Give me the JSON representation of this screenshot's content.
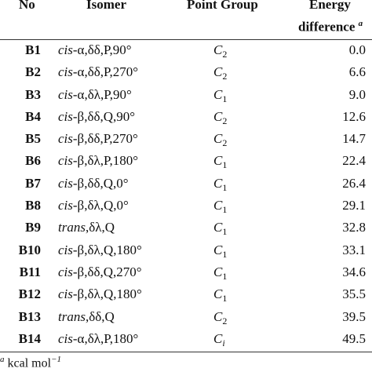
{
  "header": {
    "no": "No",
    "isomer": "Isomer",
    "point_group": "Point Group",
    "energy_line1": "Energy",
    "energy_line2": "difference",
    "energy_mark": "a"
  },
  "rows": [
    {
      "no": "B1",
      "prefix": "cis",
      "rest": "-α,δδ,P,90°",
      "pg_symbol": "C",
      "pg_sub": "2",
      "energy": "0.0"
    },
    {
      "no": "B2",
      "prefix": "cis",
      "rest": "-α,δδ,P,270°",
      "pg_symbol": "C",
      "pg_sub": "2",
      "energy": "6.6"
    },
    {
      "no": "B3",
      "prefix": "cis",
      "rest": "-α,δλ,P,90°",
      "pg_symbol": "C",
      "pg_sub": "1",
      "energy": "9.0"
    },
    {
      "no": "B4",
      "prefix": "cis",
      "rest": "-β,δδ,Q,90°",
      "pg_symbol": "C",
      "pg_sub": "2",
      "energy": "12.6"
    },
    {
      "no": "B5",
      "prefix": "cis",
      "rest": "-β,δδ,P,270°",
      "pg_symbol": "C",
      "pg_sub": "2",
      "energy": "14.7"
    },
    {
      "no": "B6",
      "prefix": "cis",
      "rest": "-β,δλ,P,180°",
      "pg_symbol": "C",
      "pg_sub": "1",
      "energy": "22.4"
    },
    {
      "no": "B7",
      "prefix": "cis",
      "rest": "-β,δδ,Q,0°",
      "pg_symbol": "C",
      "pg_sub": "1",
      "energy": "26.4"
    },
    {
      "no": "B8",
      "prefix": "cis",
      "rest": "-β,δλ,Q,0°",
      "pg_symbol": "C",
      "pg_sub": "1",
      "energy": "29.1"
    },
    {
      "no": "B9",
      "prefix": "trans",
      "rest": ",δλ,Q",
      "pg_symbol": "C",
      "pg_sub": "1",
      "energy": "32.8"
    },
    {
      "no": "B10",
      "prefix": "cis",
      "rest": "-β,δλ,Q,180°",
      "pg_symbol": "C",
      "pg_sub": "1",
      "energy": "33.1"
    },
    {
      "no": "B11",
      "prefix": "cis",
      "rest": "-β,δδ,Q,270°",
      "pg_symbol": "C",
      "pg_sub": "1",
      "energy": "34.6"
    },
    {
      "no": "B12",
      "prefix": "cis",
      "rest": "-β,δλ,Q,180°",
      "pg_symbol": "C",
      "pg_sub": "1",
      "energy": "35.5"
    },
    {
      "no": "B13",
      "prefix": "trans",
      "rest": ",δδ,Q",
      "pg_symbol": "C",
      "pg_sub": "2",
      "energy": "39.5"
    },
    {
      "no": "B14",
      "prefix": "cis",
      "rest": "-α,δλ,P,180°",
      "pg_symbol": "C",
      "pg_sub": "i",
      "energy": "49.5"
    }
  ],
  "footnote": {
    "mark": "a",
    "text": " kcal mol",
    "exponent": "−1"
  }
}
